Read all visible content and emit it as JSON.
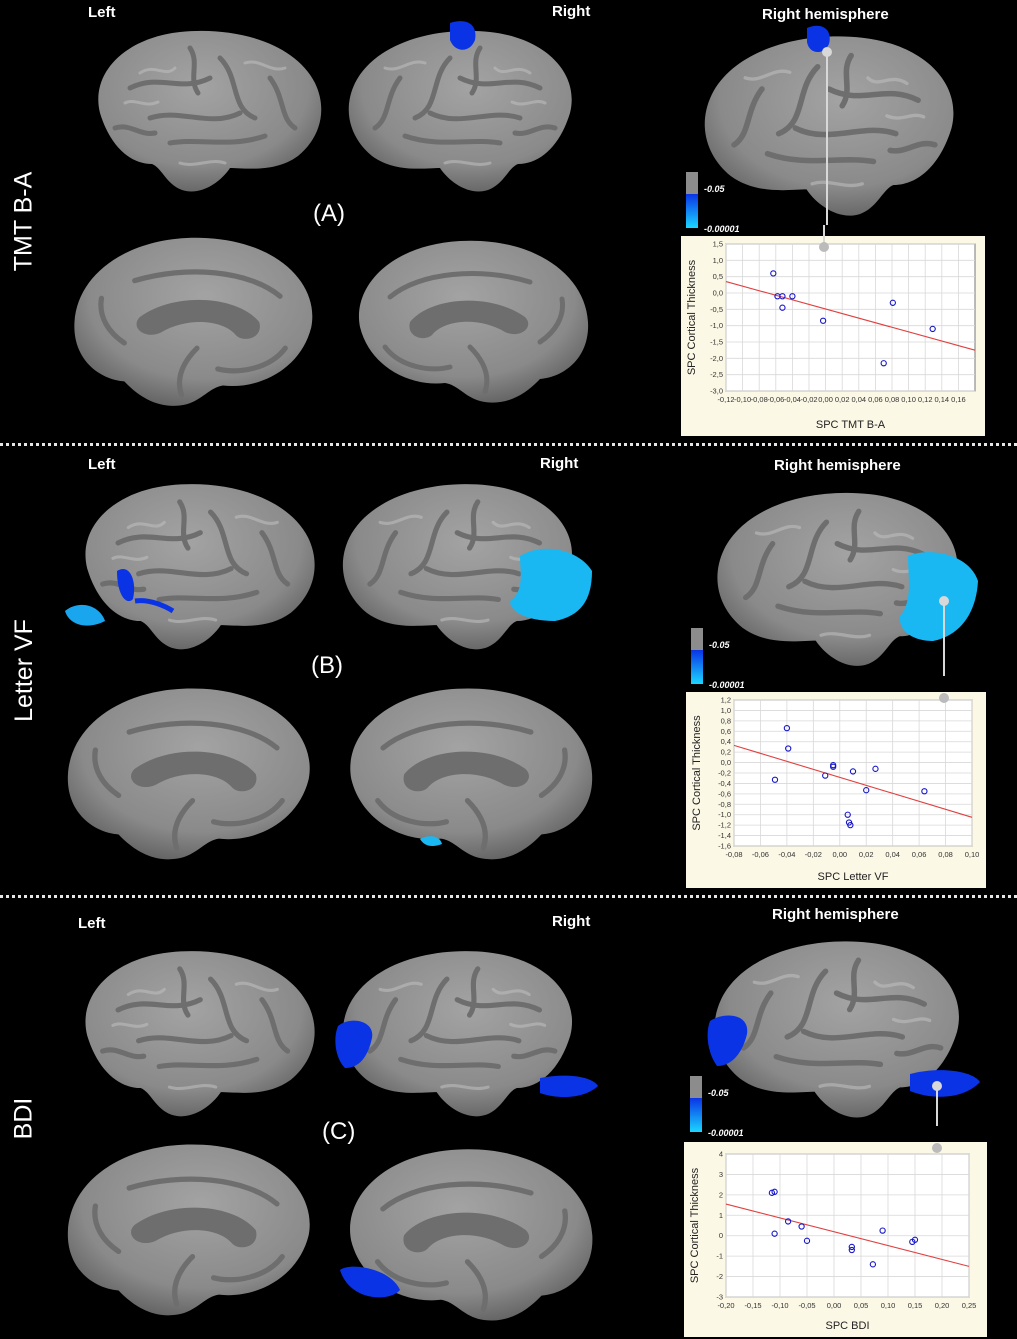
{
  "colors": {
    "highlight_dark": "#0a33e6",
    "highlight_light": "#1ad6ff",
    "cortex": "#8f8f8f",
    "sulcus": "#6c6c6c",
    "fit_line": "#e04040",
    "marker": "#1515c8",
    "plot_bg": "#fcf8e6"
  },
  "panels": [
    {
      "side_label": "TMT B-A",
      "letter": "(A)",
      "left_label": "Left",
      "right_label": "Right",
      "rh_label": "Right hemisphere",
      "colorbar": {
        "top_label": "-0.05",
        "bottom_label": "-0.00001"
      },
      "chart_data": {
        "type": "scatter",
        "xlabel": "SPC  TMT B-A",
        "ylabel": "SPC  Cortical Thickness",
        "xlim": [
          -0.12,
          0.18
        ],
        "ylim": [
          -3.0,
          1.5
        ],
        "x_ticks": [
          -0.12,
          -0.1,
          -0.08,
          -0.06,
          -0.04,
          -0.02,
          0.0,
          0.02,
          0.04,
          0.06,
          0.08,
          0.1,
          0.12,
          0.14,
          0.16
        ],
        "x_tick_labels": [
          "-0,12",
          "-0,10",
          "-0,08",
          "-0,06",
          "-0,04",
          "-0,02",
          "0,00",
          "0,02",
          "0,04",
          "0,06",
          "0,08",
          "0,10",
          "0,12",
          "0,14",
          "0,16"
        ],
        "y_ticks": [
          1.5,
          1.0,
          0.5,
          0.0,
          -0.5,
          -1.0,
          -1.5,
          -2.0,
          -2.5,
          -3.0
        ],
        "y_tick_labels": [
          "1,5",
          "1,0",
          "0,5",
          "0,0",
          "-0,5",
          "-1,0",
          "-1,5",
          "-2,0",
          "-2,5",
          "-3,0"
        ],
        "x": [
          -0.063,
          -0.058,
          -0.052,
          -0.052,
          -0.04,
          -0.003,
          0.07,
          0.081,
          0.129
        ],
        "y": [
          0.6,
          -0.1,
          -0.1,
          -0.45,
          -0.1,
          -0.85,
          -2.15,
          -0.3,
          -1.1
        ],
        "fit": {
          "x": [
            -0.12,
            0.18
          ],
          "y": [
            0.35,
            -1.75
          ]
        },
        "grid": true
      }
    },
    {
      "side_label": "Letter VF",
      "letter": "(B)",
      "left_label": "Left",
      "right_label": "Right",
      "rh_label": "Right hemisphere",
      "colorbar": {
        "top_label": "-0.05",
        "bottom_label": "-0.00001"
      },
      "chart_data": {
        "type": "scatter",
        "xlabel": "SPC Letter VF",
        "ylabel": "SPC  Cortical Thickness",
        "xlim": [
          -0.08,
          0.1
        ],
        "ylim": [
          -1.6,
          1.2
        ],
        "x_ticks": [
          -0.08,
          -0.06,
          -0.04,
          -0.02,
          0.0,
          0.02,
          0.04,
          0.06,
          0.08,
          0.1
        ],
        "x_tick_labels": [
          "-0,08",
          "-0,06",
          "-0,04",
          "-0,02",
          "0,00",
          "0,02",
          "0,04",
          "0,06",
          "0,08",
          "0,10"
        ],
        "y_ticks": [
          1.2,
          1.0,
          0.8,
          0.6,
          0.4,
          0.2,
          0.0,
          -0.2,
          -0.4,
          -0.6,
          -0.8,
          -1.0,
          -1.2,
          -1.4,
          -1.6
        ],
        "y_tick_labels": [
          "1,2",
          "1,0",
          "0,8",
          "0,6",
          "0,4",
          "0,2",
          "0,0",
          "-0,2",
          "-0,4",
          "-0,6",
          "-0,8",
          "-1,0",
          "-1,2",
          "-1,4",
          "-1,6"
        ],
        "x": [
          -0.049,
          -0.04,
          -0.039,
          -0.011,
          -0.005,
          -0.005,
          0.006,
          0.007,
          0.008,
          0.01,
          0.02,
          0.027,
          0.064
        ],
        "y": [
          -0.33,
          0.66,
          0.27,
          -0.25,
          -0.05,
          -0.08,
          -1.0,
          -1.15,
          -1.2,
          -0.17,
          -0.53,
          -0.12,
          -0.55
        ],
        "fit": {
          "x": [
            -0.08,
            0.1
          ],
          "y": [
            0.33,
            -1.05
          ]
        },
        "grid": true
      }
    },
    {
      "side_label": "BDI",
      "letter": "(C)",
      "left_label": "Left",
      "right_label": "Right",
      "rh_label": "Right hemisphere",
      "colorbar": {
        "top_label": "-0.05",
        "bottom_label": "-0.00001"
      },
      "chart_data": {
        "type": "scatter",
        "xlabel": "SPC  BDI",
        "ylabel": "SPC  Cortical Thickness",
        "xlim": [
          -0.2,
          0.25
        ],
        "ylim": [
          -3,
          4
        ],
        "x_ticks": [
          -0.2,
          -0.15,
          -0.1,
          -0.05,
          0.0,
          0.05,
          0.1,
          0.15,
          0.2,
          0.25
        ],
        "x_tick_labels": [
          "-0,20",
          "-0,15",
          "-0,10",
          "-0,05",
          "0,00",
          "0,05",
          "0,10",
          "0,15",
          "0,20",
          "0,25"
        ],
        "y_ticks": [
          4,
          3,
          2,
          1,
          0,
          -1,
          -2,
          -3
        ],
        "y_tick_labels": [
          "4",
          "3",
          "2",
          "1",
          "0",
          "-1",
          "-2",
          "-3"
        ],
        "x": [
          -0.115,
          -0.11,
          -0.11,
          -0.085,
          -0.06,
          -0.05,
          0.033,
          0.033,
          0.072,
          0.09,
          0.145,
          0.15
        ],
        "y": [
          2.1,
          2.15,
          0.1,
          0.7,
          0.45,
          -0.25,
          -0.55,
          -0.7,
          -1.4,
          0.25,
          -0.3,
          -0.2
        ],
        "fit": {
          "x": [
            -0.2,
            0.25
          ],
          "y": [
            1.55,
            -1.5
          ]
        },
        "grid": true
      }
    }
  ]
}
